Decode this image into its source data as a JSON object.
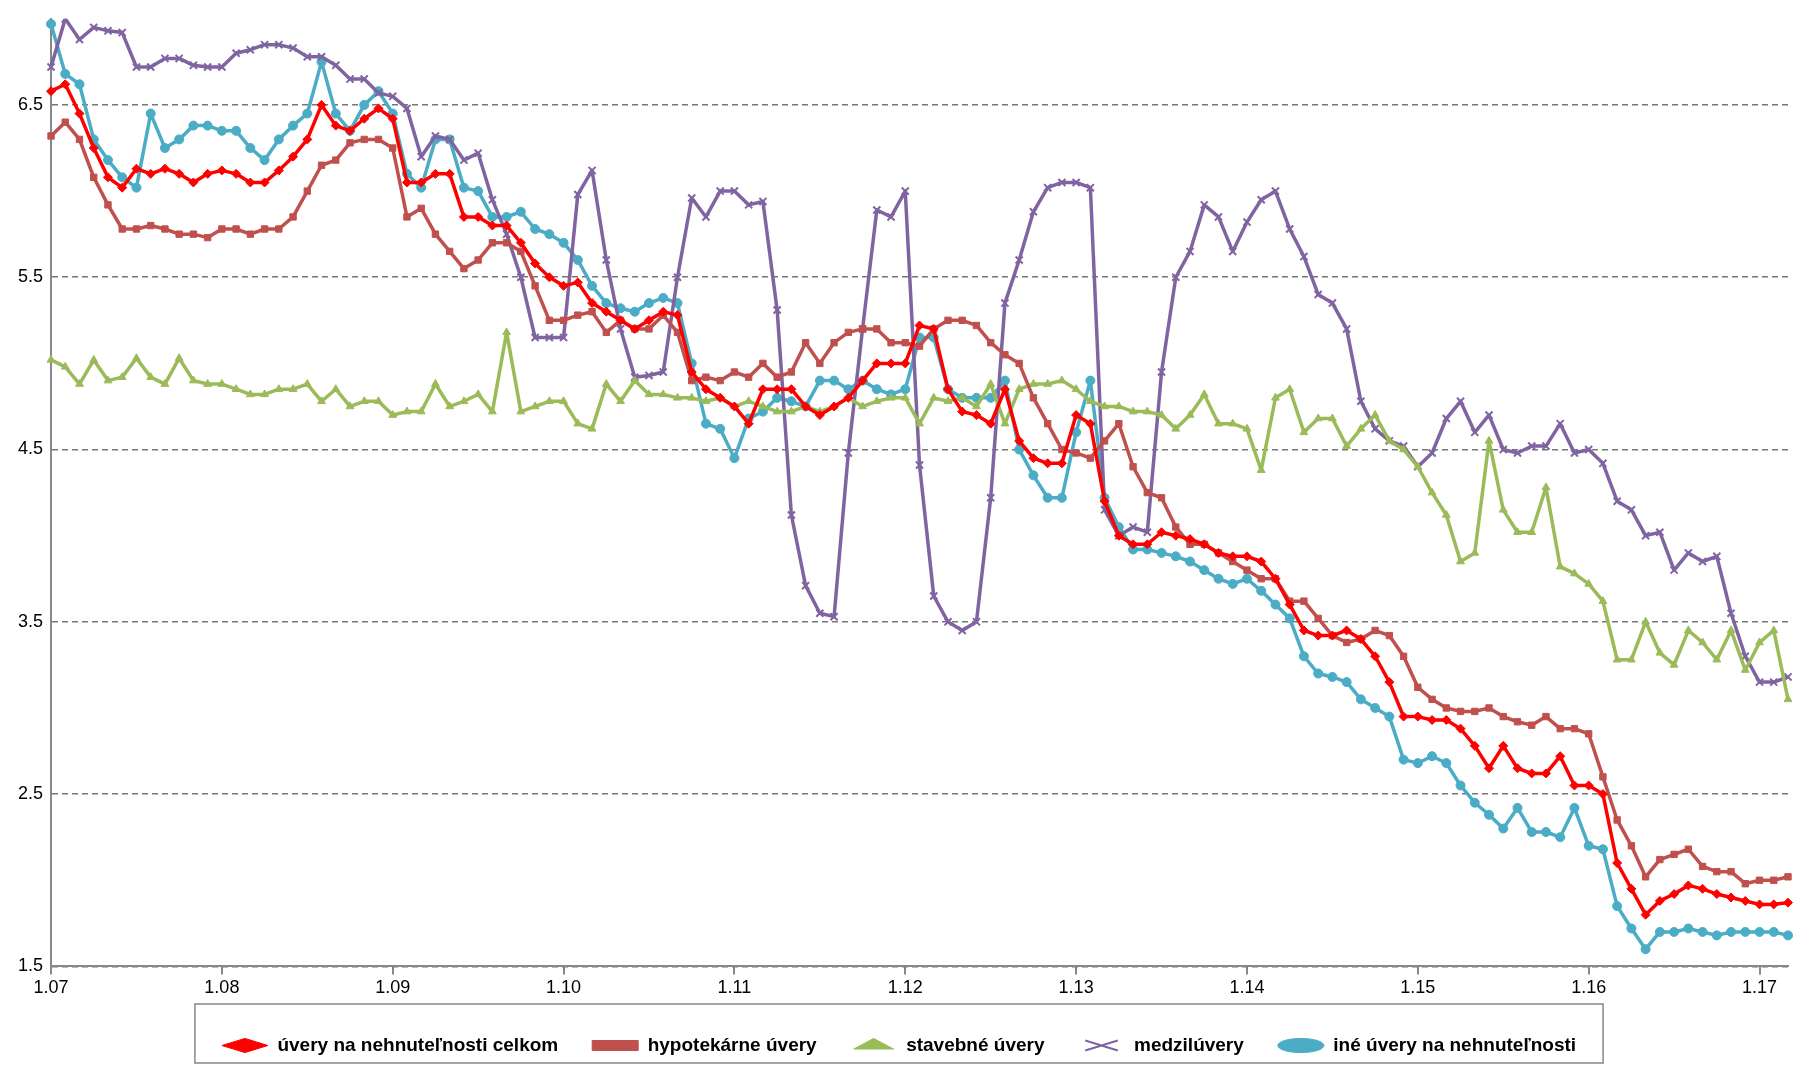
{
  "chart_data": {
    "type": "line",
    "categories": [
      "1.07",
      null,
      null,
      null,
      null,
      null,
      null,
      null,
      null,
      null,
      null,
      null,
      "1.08",
      null,
      null,
      null,
      null,
      null,
      null,
      null,
      null,
      null,
      null,
      null,
      "1.09",
      null,
      null,
      null,
      null,
      null,
      null,
      null,
      null,
      null,
      null,
      null,
      "1.10",
      null,
      null,
      null,
      null,
      null,
      null,
      null,
      null,
      null,
      null,
      null,
      "1.11",
      null,
      null,
      null,
      null,
      null,
      null,
      null,
      null,
      null,
      null,
      null,
      "1.12",
      null,
      null,
      null,
      null,
      null,
      null,
      null,
      null,
      null,
      null,
      null,
      "1.13",
      null,
      null,
      null,
      null,
      null,
      null,
      null,
      null,
      null,
      null,
      null,
      "1.14",
      null,
      null,
      null,
      null,
      null,
      null,
      null,
      null,
      null,
      null,
      null,
      "1.15",
      null,
      null,
      null,
      null,
      null,
      null,
      null,
      null,
      null,
      null,
      null,
      "1.16",
      null,
      null,
      null,
      null,
      null,
      null,
      null,
      null,
      null,
      null,
      null,
      "1.17",
      null,
      null
    ],
    "ylim": [
      1.5,
      7
    ],
    "yticks": [
      1.5,
      2.5,
      3.5,
      4.5,
      5.5,
      6.5
    ],
    "grid": "y",
    "legend": "bottom",
    "line_style": "solid",
    "series": [
      {
        "name": "úvery na nehnuteľnosti celkom",
        "color": "#ff0000",
        "marker": "diamond",
        "values": [
          6.58,
          6.62,
          6.45,
          6.25,
          6.08,
          6.02,
          6.13,
          6.1,
          6.13,
          6.1,
          6.05,
          6.1,
          6.12,
          6.1,
          6.05,
          6.05,
          6.12,
          6.2,
          6.3,
          6.5,
          6.38,
          6.35,
          6.42,
          6.48,
          6.42,
          6.05,
          6.05,
          6.1,
          6.1,
          5.85,
          5.85,
          5.8,
          5.8,
          5.7,
          5.58,
          5.5,
          5.45,
          5.47,
          5.35,
          5.3,
          5.25,
          5.2,
          5.25,
          5.3,
          5.28,
          4.95,
          4.85,
          4.8,
          4.75,
          4.65,
          4.85,
          4.85,
          4.85,
          4.75,
          4.7,
          4.75,
          4.8,
          4.9,
          5.0,
          5.0,
          5.0,
          5.22,
          5.2,
          4.85,
          4.72,
          4.7,
          4.65,
          4.85,
          4.55,
          4.45,
          4.42,
          4.42,
          4.7,
          4.65,
          4.2,
          4.0,
          3.95,
          3.95,
          4.02,
          4.0,
          3.98,
          3.95,
          3.9,
          3.88,
          3.88,
          3.85,
          3.75,
          3.6,
          3.45,
          3.42,
          3.42,
          3.45,
          3.4,
          3.3,
          3.15,
          2.95,
          2.95,
          2.93,
          2.93,
          2.88,
          2.78,
          2.65,
          2.78,
          2.65,
          2.62,
          2.62,
          2.72,
          2.55,
          2.55,
          2.5,
          2.1,
          1.95,
          1.8,
          1.88,
          1.92,
          1.97,
          1.95,
          1.92,
          1.9,
          1.88,
          1.86,
          1.86,
          1.87
        ]
      },
      {
        "name": "hypotekárne úvery",
        "color": "#c0504d",
        "marker": "square",
        "values": [
          6.32,
          6.4,
          6.3,
          6.08,
          5.92,
          5.78,
          5.78,
          5.8,
          5.78,
          5.75,
          5.75,
          5.73,
          5.78,
          5.78,
          5.75,
          5.78,
          5.78,
          5.85,
          6.0,
          6.15,
          6.18,
          6.28,
          6.3,
          6.3,
          6.25,
          5.85,
          5.9,
          5.75,
          5.65,
          5.55,
          5.6,
          5.7,
          5.7,
          5.65,
          5.45,
          5.25,
          5.25,
          5.28,
          5.3,
          5.18,
          5.25,
          5.2,
          5.2,
          5.28,
          5.18,
          4.9,
          4.92,
          4.9,
          4.95,
          4.92,
          5.0,
          4.92,
          4.95,
          5.12,
          5.0,
          5.12,
          5.18,
          5.2,
          5.2,
          5.12,
          5.12,
          5.1,
          5.2,
          5.25,
          5.25,
          5.22,
          5.12,
          5.05,
          5.0,
          4.8,
          4.65,
          4.5,
          4.48,
          4.45,
          4.55,
          4.65,
          4.4,
          4.25,
          4.22,
          4.05,
          3.95,
          3.95,
          3.9,
          3.85,
          3.8,
          3.75,
          3.75,
          3.62,
          3.62,
          3.52,
          3.42,
          3.38,
          3.4,
          3.45,
          3.42,
          3.3,
          3.12,
          3.05,
          3.0,
          2.98,
          2.98,
          3.0,
          2.95,
          2.92,
          2.9,
          2.95,
          2.88,
          2.88,
          2.85,
          2.6,
          2.35,
          2.2,
          2.02,
          2.12,
          2.15,
          2.18,
          2.08,
          2.05,
          2.05,
          1.98,
          2.0,
          2.0,
          2.02
        ]
      },
      {
        "name": "stavebné úvery",
        "color": "#9bbb59",
        "marker": "triangle",
        "values": [
          5.02,
          4.98,
          4.88,
          5.02,
          4.9,
          4.92,
          5.03,
          4.92,
          4.88,
          5.03,
          4.9,
          4.88,
          4.88,
          4.85,
          4.82,
          4.82,
          4.85,
          4.85,
          4.88,
          4.78,
          4.85,
          4.75,
          4.78,
          4.78,
          4.7,
          4.72,
          4.72,
          4.88,
          4.75,
          4.78,
          4.82,
          4.72,
          5.18,
          4.72,
          4.75,
          4.78,
          4.78,
          4.65,
          4.62,
          4.88,
          4.78,
          4.9,
          4.82,
          4.82,
          4.8,
          4.8,
          4.78,
          4.8,
          4.75,
          4.78,
          4.75,
          4.72,
          4.72,
          4.75,
          4.72,
          4.75,
          4.8,
          4.75,
          4.78,
          4.8,
          4.8,
          4.65,
          4.8,
          4.78,
          4.8,
          4.75,
          4.88,
          4.65,
          4.85,
          4.88,
          4.88,
          4.9,
          4.85,
          4.78,
          4.75,
          4.75,
          4.72,
          4.72,
          4.7,
          4.62,
          4.7,
          4.82,
          4.65,
          4.65,
          4.62,
          4.38,
          4.8,
          4.85,
          4.6,
          4.68,
          4.68,
          4.52,
          4.62,
          4.7,
          4.55,
          4.5,
          4.4,
          4.25,
          4.12,
          3.85,
          3.9,
          4.55,
          4.15,
          4.02,
          4.02,
          4.28,
          3.82,
          3.78,
          3.72,
          3.62,
          3.28,
          3.28,
          3.5,
          3.32,
          3.25,
          3.45,
          3.38,
          3.28,
          3.45,
          3.22,
          3.38,
          3.45,
          3.05
        ]
      },
      {
        "name": "medzilúvery",
        "color": "#8064a2",
        "marker": "cross",
        "values": [
          6.72,
          7.0,
          6.88,
          6.95,
          6.93,
          6.92,
          6.72,
          6.72,
          6.77,
          6.77,
          6.73,
          6.72,
          6.72,
          6.8,
          6.82,
          6.85,
          6.85,
          6.83,
          6.78,
          6.78,
          6.73,
          6.65,
          6.65,
          6.57,
          6.55,
          6.48,
          6.2,
          6.32,
          6.3,
          6.18,
          6.22,
          5.95,
          5.75,
          5.5,
          5.15,
          5.15,
          5.15,
          5.98,
          6.12,
          5.6,
          5.2,
          4.92,
          4.93,
          4.95,
          5.5,
          5.96,
          5.85,
          6.0,
          6.0,
          5.92,
          5.94,
          5.31,
          4.12,
          3.71,
          3.55,
          3.53,
          4.48,
          5.2,
          5.89,
          5.85,
          6.0,
          4.41,
          3.65,
          3.5,
          3.45,
          3.5,
          4.22,
          5.35,
          5.6,
          5.88,
          6.02,
          6.05,
          6.05,
          6.02,
          4.15,
          4.0,
          4.05,
          4.02,
          4.95,
          5.5,
          5.65,
          5.92,
          5.85,
          5.65,
          5.82,
          5.95,
          6.0,
          5.78,
          5.62,
          5.4,
          5.35,
          5.2,
          4.78,
          4.62,
          4.55,
          4.52,
          4.4,
          4.48,
          4.68,
          4.78,
          4.6,
          4.7,
          4.5,
          4.48,
          4.52,
          4.52,
          4.65,
          4.48,
          4.5,
          4.42,
          4.2,
          4.15,
          4.0,
          4.02,
          3.8,
          3.9,
          3.85,
          3.88,
          3.55,
          3.3,
          3.15,
          3.15,
          3.18
        ]
      },
      {
        "name": "iné úvery na nehnuteľnosti",
        "color": "#4bacc6",
        "marker": "circle",
        "values": [
          6.97,
          6.68,
          6.62,
          6.3,
          6.18,
          6.08,
          6.02,
          6.45,
          6.25,
          6.3,
          6.38,
          6.38,
          6.35,
          6.35,
          6.25,
          6.18,
          6.3,
          6.38,
          6.45,
          6.75,
          6.45,
          6.35,
          6.5,
          6.58,
          6.45,
          6.1,
          6.02,
          6.3,
          6.3,
          6.02,
          6.0,
          5.85,
          5.85,
          5.88,
          5.78,
          5.75,
          5.7,
          5.6,
          5.45,
          5.35,
          5.32,
          5.3,
          5.35,
          5.38,
          5.35,
          5.0,
          4.65,
          4.62,
          4.45,
          4.68,
          4.72,
          4.8,
          4.78,
          4.75,
          4.9,
          4.9,
          4.85,
          4.9,
          4.85,
          4.82,
          4.85,
          5.15,
          5.15,
          4.85,
          4.8,
          4.8,
          4.8,
          4.9,
          4.5,
          4.35,
          4.22,
          4.22,
          4.6,
          4.9,
          4.22,
          4.05,
          3.92,
          3.92,
          3.9,
          3.88,
          3.85,
          3.8,
          3.75,
          3.72,
          3.75,
          3.68,
          3.6,
          3.52,
          3.3,
          3.2,
          3.18,
          3.15,
          3.05,
          3.0,
          2.95,
          2.7,
          2.68,
          2.72,
          2.68,
          2.55,
          2.45,
          2.38,
          2.3,
          2.42,
          2.28,
          2.28,
          2.25,
          2.42,
          2.2,
          2.18,
          1.85,
          1.72,
          1.6,
          1.7,
          1.7,
          1.72,
          1.7,
          1.68,
          1.7,
          1.7,
          1.7,
          1.7,
          1.68
        ]
      }
    ]
  }
}
